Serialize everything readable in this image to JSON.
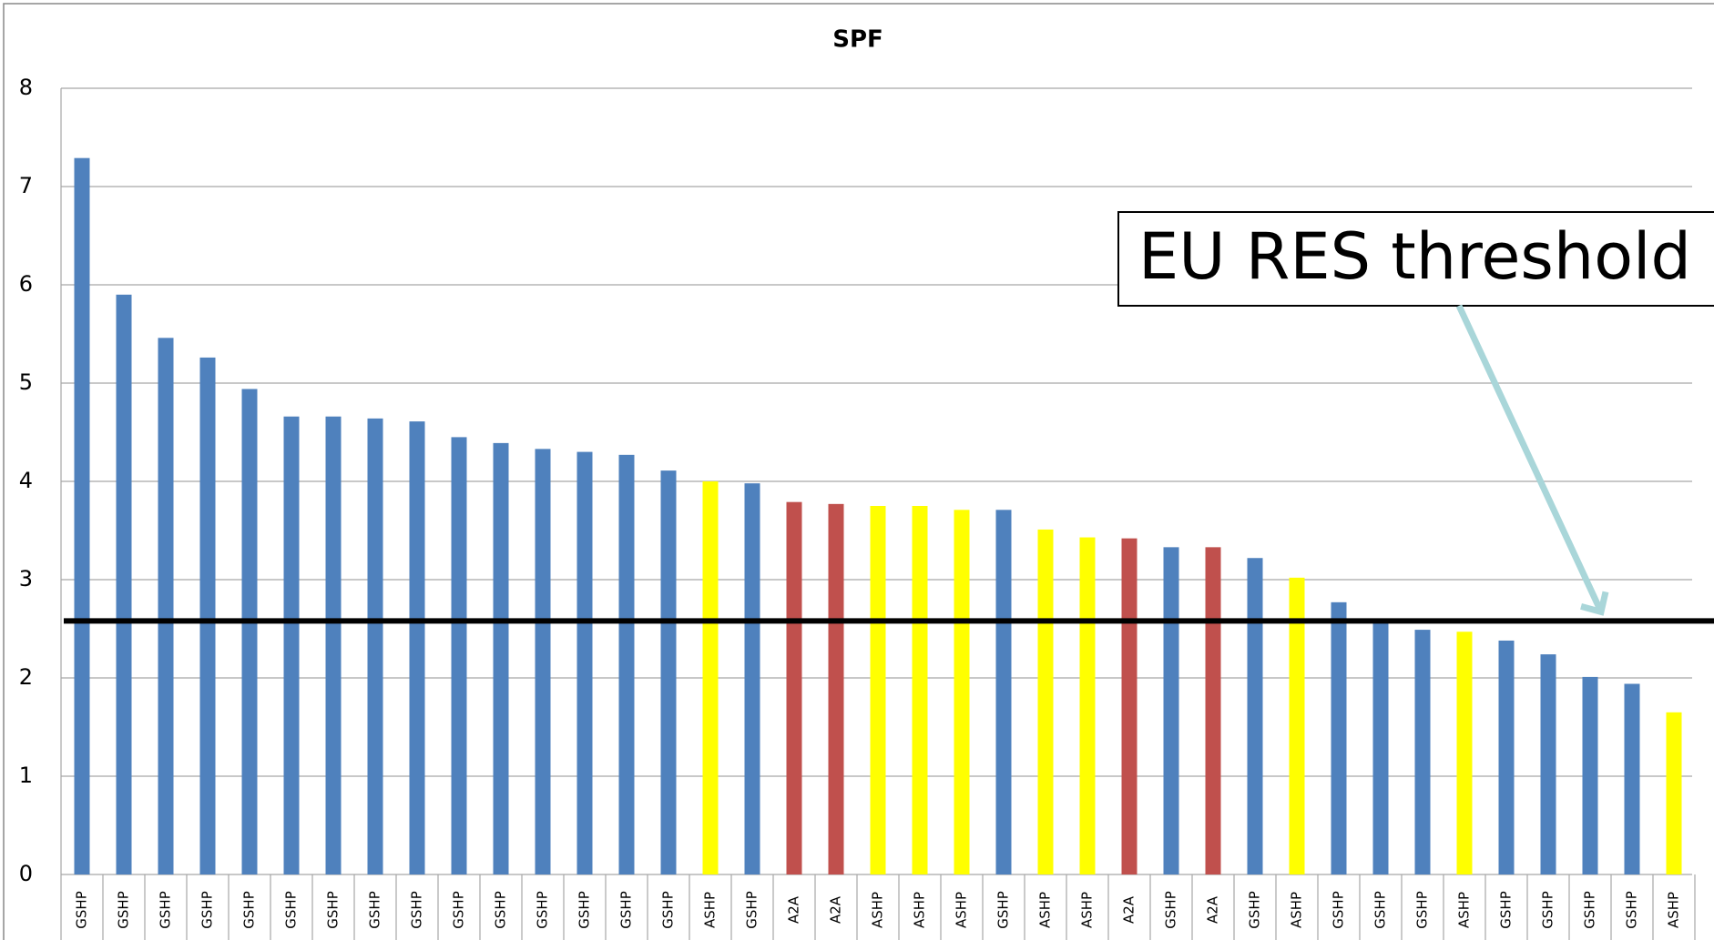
{
  "chart_data": {
    "type": "bar",
    "title": "SPF",
    "categories": [
      "GSHP",
      "GSHP",
      "GSHP",
      "GSHP",
      "GSHP",
      "GSHP",
      "GSHP",
      "GSHP",
      "GSHP",
      "GSHP",
      "GSHP",
      "GSHP",
      "GSHP",
      "GSHP",
      "GSHP",
      "ASHP",
      "GSHP",
      "A2A",
      "A2A",
      "ASHP",
      "ASHP",
      "ASHP",
      "GSHP",
      "ASHP",
      "ASHP",
      "A2A",
      "GSHP",
      "A2A",
      "GSHP",
      "ASHP",
      "GSHP",
      "GSHP",
      "GSHP",
      "ASHP",
      "GSHP",
      "GSHP",
      "GSHP",
      "GSHP",
      "ASHP"
    ],
    "values": [
      7.29,
      5.9,
      5.46,
      5.26,
      4.94,
      4.66,
      4.66,
      4.64,
      4.61,
      4.45,
      4.39,
      4.33,
      4.3,
      4.27,
      4.11,
      4.0,
      3.98,
      3.79,
      3.77,
      3.75,
      3.75,
      3.71,
      3.71,
      3.51,
      3.43,
      3.42,
      3.33,
      3.33,
      3.22,
      3.02,
      2.77,
      2.57,
      2.49,
      2.47,
      2.38,
      2.24,
      2.01,
      1.94,
      1.65
    ],
    "category_colors": {
      "GSHP": "#4f81bd",
      "ASHP": "#ffff00",
      "A2A": "#c0504d"
    },
    "ylim": [
      0,
      8
    ],
    "yticks": [
      0,
      1,
      2,
      3,
      4,
      5,
      6,
      7,
      8
    ],
    "grid": true,
    "threshold": 2.58,
    "annotation": "EU RES threshold"
  }
}
